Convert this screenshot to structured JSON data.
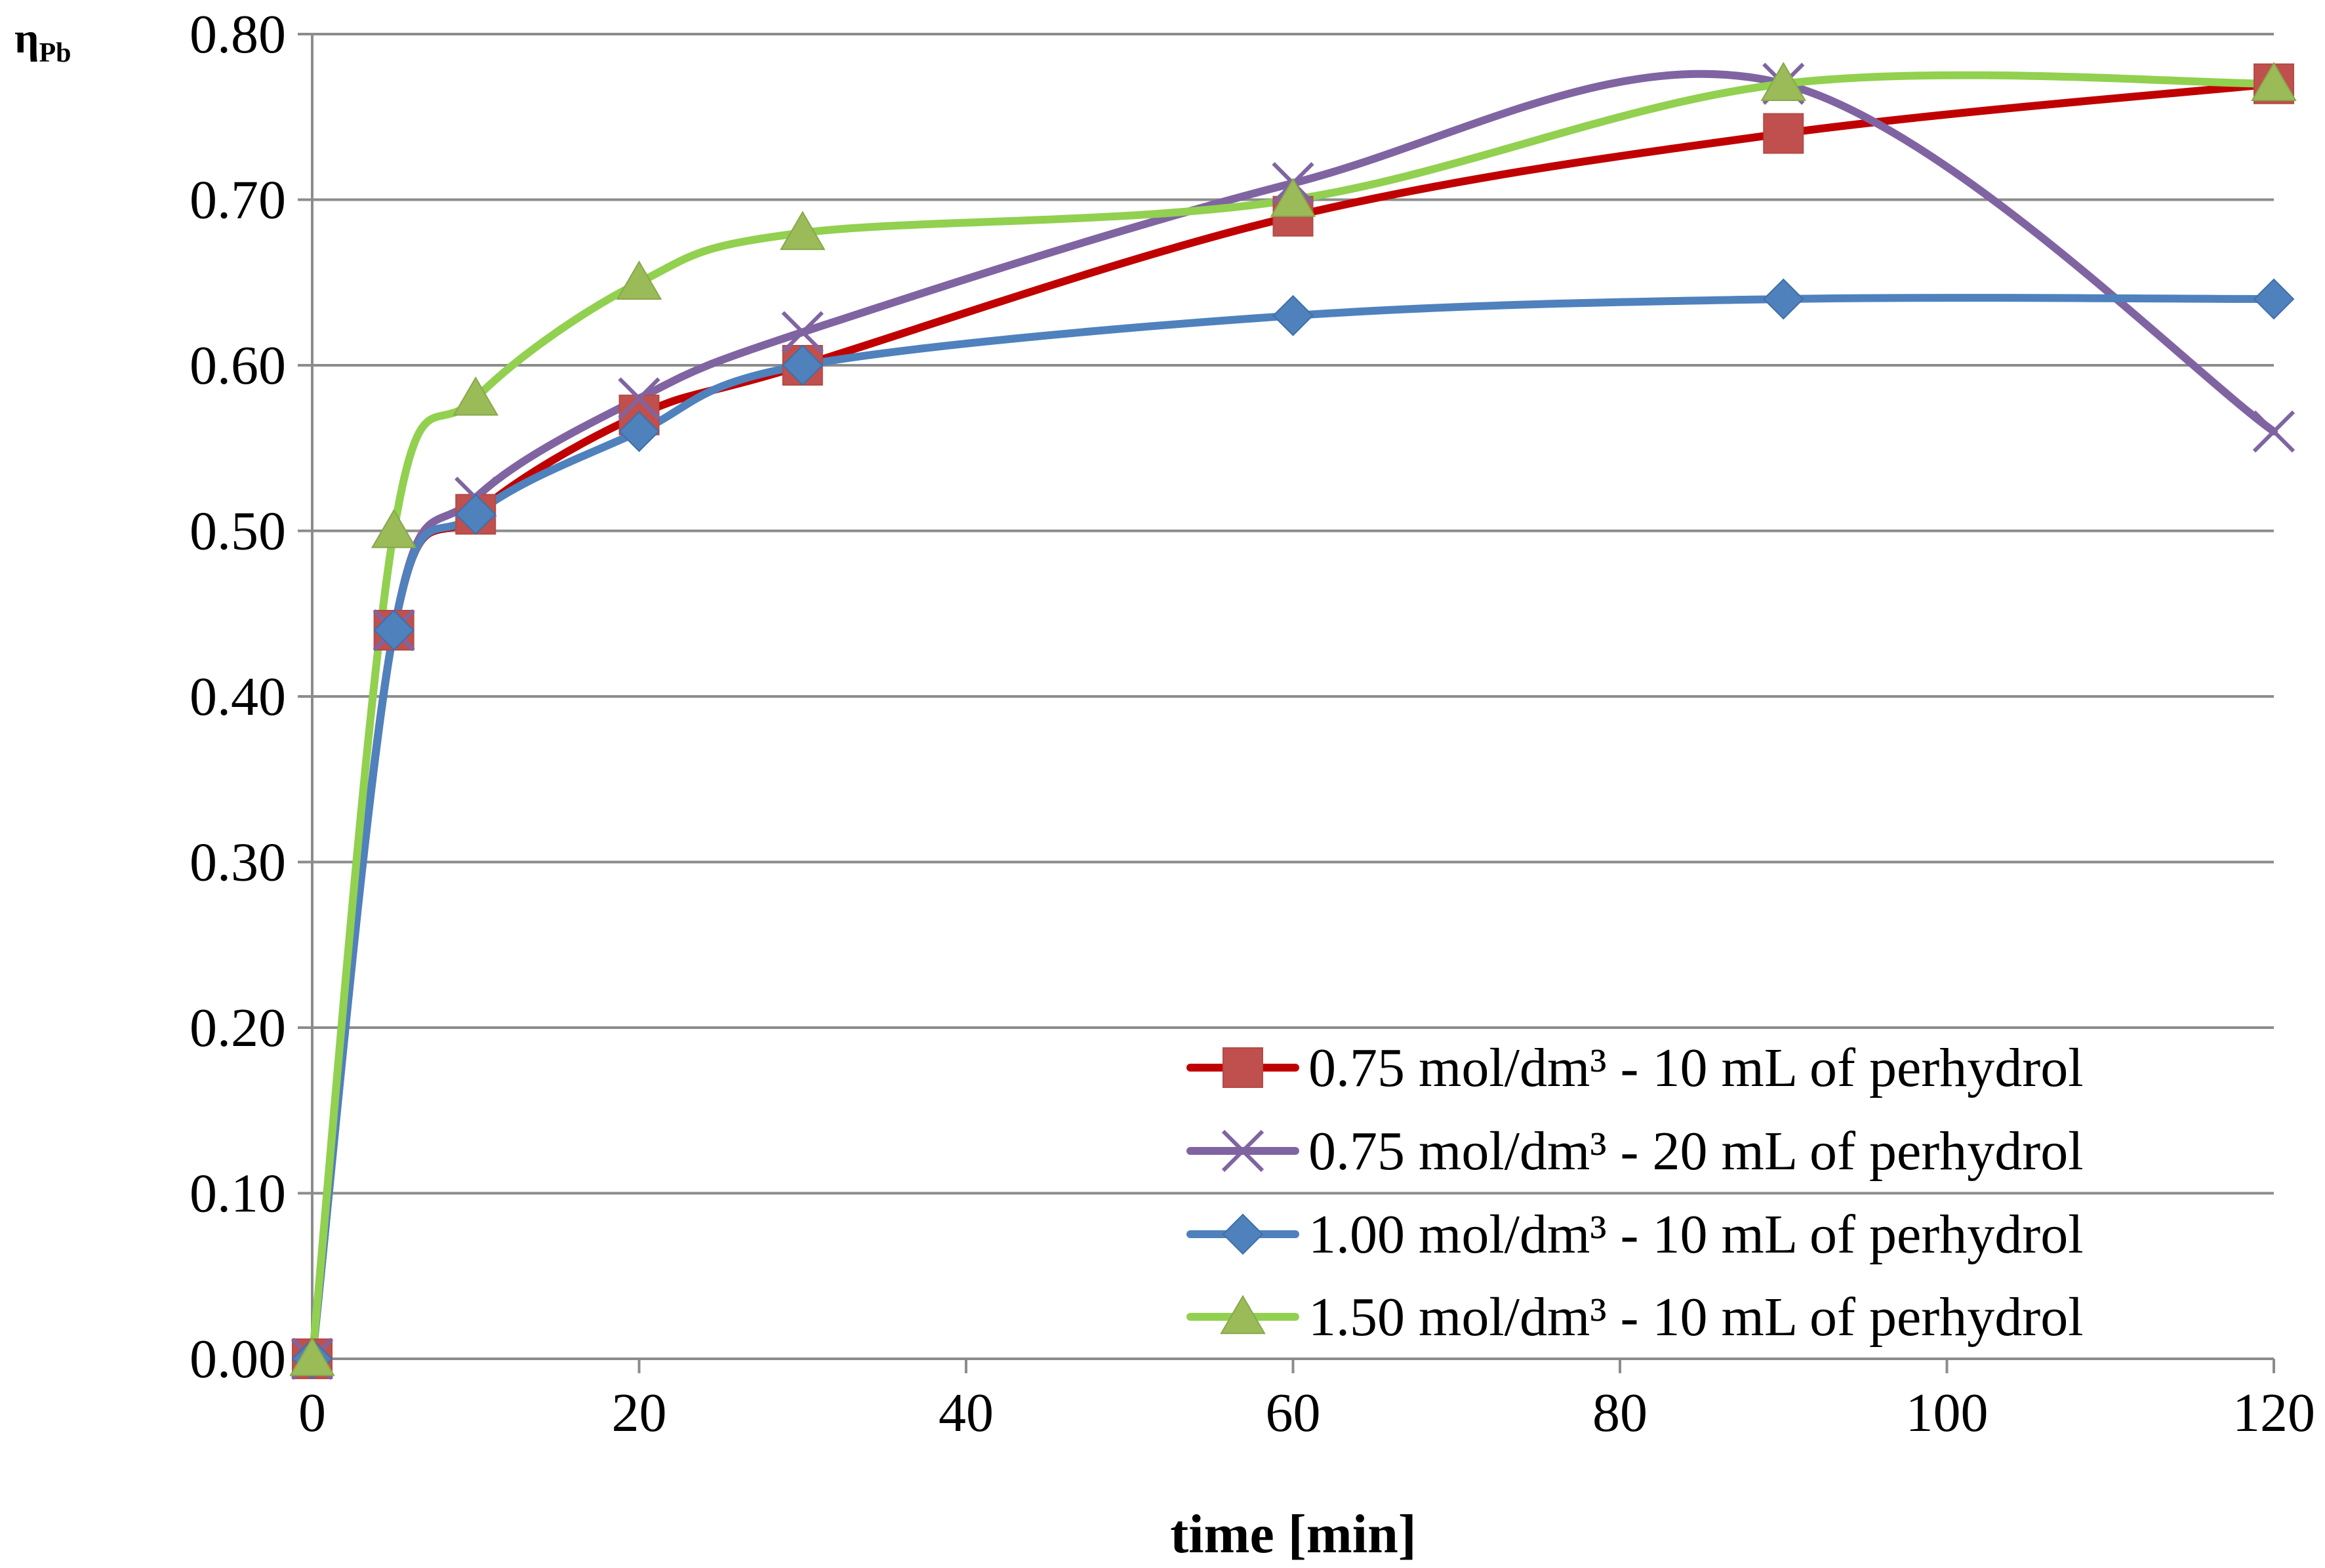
{
  "chart_data": {
    "type": "line",
    "title": "",
    "xlabel": "time [min]",
    "ylabel_main": "η",
    "ylabel_sub": "Pb",
    "xlim": [
      0,
      120
    ],
    "ylim": [
      0,
      0.8
    ],
    "x_ticks": [
      0,
      20,
      40,
      60,
      80,
      100,
      120
    ],
    "x_tick_labels": [
      "0",
      "20",
      "40",
      "60",
      "80",
      "100",
      "120"
    ],
    "y_ticks": [
      0,
      0.1,
      0.2,
      0.3,
      0.4,
      0.5,
      0.6,
      0.7,
      0.8
    ],
    "y_tick_labels": [
      "0.00",
      "0.10",
      "0.20",
      "0.30",
      "0.40",
      "0.50",
      "0.60",
      "0.70",
      "0.80"
    ],
    "grid": "horizontal",
    "legend_position": "bottom-right",
    "x": [
      0,
      5,
      10,
      20,
      30,
      60,
      90,
      120
    ],
    "series": [
      {
        "name": "0.75 mol/dm³ - 10 mL of perhydrol",
        "line_color": "#C00000",
        "marker_color": "#C0504D",
        "marker": "square",
        "values": [
          0.0,
          0.44,
          0.51,
          0.57,
          0.6,
          0.69,
          0.74,
          0.77
        ]
      },
      {
        "name": "0.75 mol/dm³ - 20 mL of perhydrol",
        "line_color": "#8064A2",
        "marker_color": "#8064A2",
        "marker": "x",
        "values": [
          0.0,
          0.44,
          0.52,
          0.58,
          0.62,
          0.71,
          0.77,
          0.56
        ]
      },
      {
        "name": "1.00 mol/dm³ - 10 mL of perhydrol",
        "line_color": "#4F81BD",
        "marker_color": "#4F81BD",
        "marker": "diamond",
        "values": [
          0.0,
          0.44,
          0.51,
          0.56,
          0.6,
          0.63,
          0.64,
          0.64
        ]
      },
      {
        "name": "1.50 mol/dm³ - 10 mL of perhydrol",
        "line_color": "#92D050",
        "marker_color": "#9BBB59",
        "marker": "triangle",
        "values": [
          0.0,
          0.5,
          0.58,
          0.65,
          0.68,
          0.7,
          0.77,
          0.77
        ]
      }
    ]
  }
}
